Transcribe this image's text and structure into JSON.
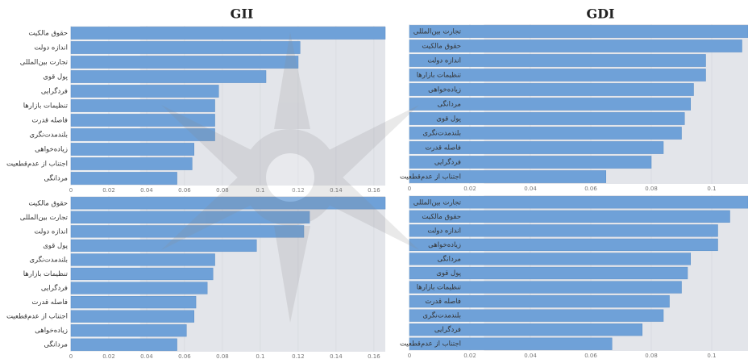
{
  "chart_data": [
    {
      "type": "bar",
      "title": "GII",
      "color": "#6fa1d8",
      "categories": [
        "حقوق مالکیت",
        "اندازه دولت",
        "تجارت بین‌المللی",
        "پول قوی",
        "فردگرایی",
        "تنظیمات بازارها",
        "فاصله قدرت",
        "بلندمدت‌نگری",
        "زیاده‌خواهی",
        "اجتناب از عدم‌قطعیت",
        "مردانگی"
      ],
      "values": [
        0.166,
        0.121,
        0.12,
        0.103,
        0.078,
        0.076,
        0.076,
        0.076,
        0.065,
        0.064,
        0.056
      ],
      "xlim": [
        0,
        0.166
      ],
      "xticks": [
        0,
        0.02,
        0.04,
        0.06,
        0.08,
        0.1,
        0.12,
        0.14,
        0.16
      ]
    },
    {
      "type": "bar",
      "title": "GDI",
      "color": "#6fa1d8",
      "categories": [
        "تجارت بین‌المللی",
        "حقوق مالکیت",
        "اندازه دولت",
        "تنظیمات بازارها",
        "زیاده‌خواهی",
        "مردانگی",
        "پول قوی",
        "بلندمدت‌نگری",
        "فاصله قدرت",
        "فردگرایی",
        "اجتناب از عدم‌قطعیت"
      ],
      "values": [
        0.112,
        0.11,
        0.098,
        0.098,
        0.094,
        0.093,
        0.091,
        0.09,
        0.084,
        0.08,
        0.065
      ],
      "xlim": [
        0,
        0.112
      ],
      "xticks": [
        0,
        0.02,
        0.04,
        0.06,
        0.08,
        0.1
      ]
    },
    {
      "type": "bar",
      "color": "#6fa1d8",
      "categories": [
        "حقوق مالکیت",
        "تجارت بین‌المللی",
        "اندازه دولت",
        "پول قوی",
        "بلندمدت‌نگری",
        "تنظیمات بازارها",
        "فردگرایی",
        "فاصله قدرت",
        "اجتناب از عدم‌قطعیت",
        "زیاده‌خواهی",
        "مردانگی"
      ],
      "values": [
        0.166,
        0.126,
        0.123,
        0.098,
        0.076,
        0.075,
        0.072,
        0.066,
        0.065,
        0.061,
        0.056
      ],
      "xlim": [
        0,
        0.166
      ],
      "xticks": [
        0,
        0.02,
        0.04,
        0.06,
        0.08,
        0.1,
        0.12,
        0.14,
        0.16
      ]
    },
    {
      "type": "bar",
      "color": "#6fa1d8",
      "categories": [
        "تجارت بین‌المللی",
        "حقوق مالکیت",
        "اندازه دولت",
        "زیاده‌خواهی",
        "مردانگی",
        "پول قوی",
        "تنظیمات بازارها",
        "فاصله قدرت",
        "بلندمدت‌نگری",
        "فردگرایی",
        "اجتناب از عدم‌قطعیت"
      ],
      "values": [
        0.112,
        0.106,
        0.102,
        0.102,
        0.093,
        0.092,
        0.09,
        0.086,
        0.084,
        0.077,
        0.067
      ],
      "xlim": [
        0,
        0.112
      ],
      "xticks": [
        0,
        0.02,
        0.04,
        0.06,
        0.08,
        0.1
      ]
    }
  ]
}
